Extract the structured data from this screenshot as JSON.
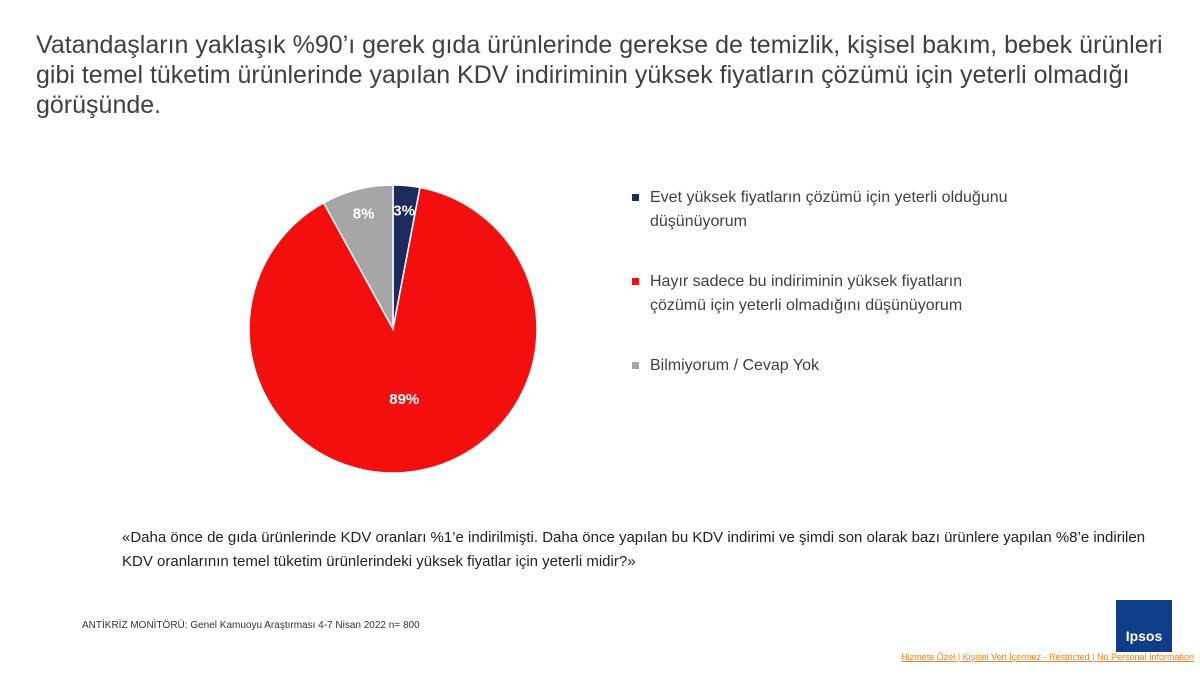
{
  "chart_data": {
    "type": "pie",
    "title": "Vatandaşların yaklaşık %90’ı gerek gıda ürünlerinde gerekse de temizlik, kişisel bakım, bebek ürünleri gibi temel tüketim ürünlerinde yapılan KDV indiriminin yüksek fiyatların çözümü için yeterli olmadığı görüşünde.",
    "categories": [
      "Evet yüksek fiyatların çözümü için yeterli olduğunu düşünüyorum",
      "Hayır sadece bu indiriminin yüksek fiyatların çözümü için yeterli olmadığını düşünüyorum",
      "Bilmiyorum / Cevap Yok"
    ],
    "values": [
      3,
      89,
      8
    ],
    "value_labels": [
      "3%",
      "89%",
      "8%"
    ],
    "colors": [
      "#1c2a5c",
      "#f40f0f",
      "#a6a6a6"
    ],
    "question": "«Daha önce de gıda ürünlerinde KDV oranları %1’e indirilmişti. Daha önce yapılan bu KDV indirimi ve şimdi son olarak bazı ürünlere yapılan %8’e indirilen KDV oranlarının temel tüketim ürünlerindeki yüksek fiyatlar için yeterli midir?»",
    "source": "ANTİKRİZ MONİTÖRÜ: Genel Kamuoyu Araştırması 4-7 Nisan 2022 n= 800",
    "logo": "Ipsos",
    "footer": "Hizmete Özel | Kişisel Veri İçermez - Restricted | No Personal Information"
  }
}
